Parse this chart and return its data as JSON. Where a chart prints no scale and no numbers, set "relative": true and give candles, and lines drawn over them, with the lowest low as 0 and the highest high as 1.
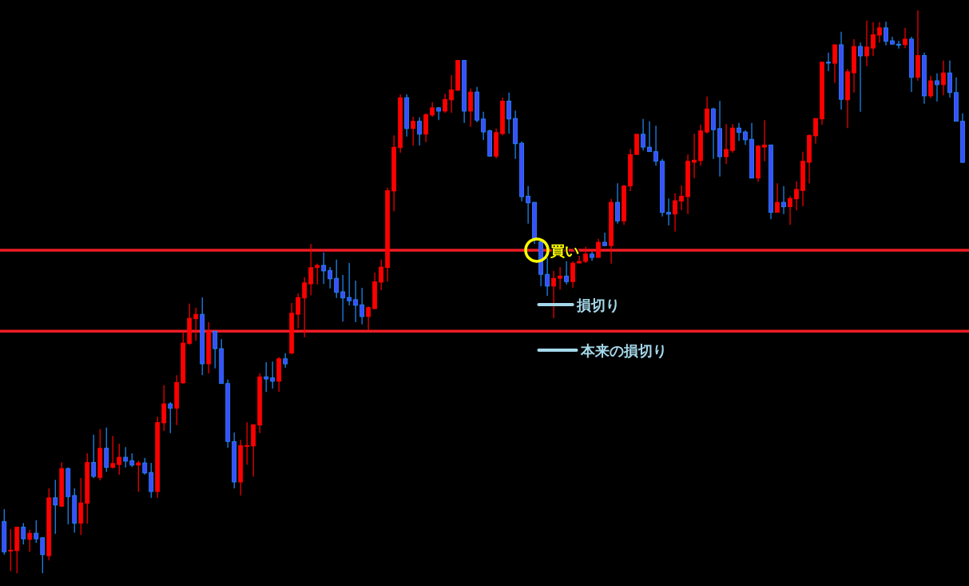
{
  "chart_data": {
    "type": "candlestick",
    "relative": true,
    "categories": [
      null,
      null,
      null,
      null,
      null,
      null,
      null,
      null,
      null,
      null,
      null,
      null,
      null,
      null,
      null,
      null,
      null,
      null,
      null,
      null,
      null,
      null,
      null,
      null,
      null,
      null,
      null,
      null,
      null,
      null,
      null,
      null,
      null,
      null,
      null,
      null,
      null,
      null,
      null,
      null,
      null,
      null,
      null,
      null,
      null,
      null,
      null,
      null,
      null,
      null,
      null,
      null,
      null,
      null,
      null,
      null,
      null,
      null,
      null,
      null,
      null,
      null,
      null,
      null,
      null,
      null,
      null,
      null,
      null,
      null,
      null,
      null,
      null,
      null,
      null,
      null,
      null,
      null,
      null,
      null,
      null,
      null,
      null,
      null,
      null,
      null,
      null,
      null,
      null,
      null,
      null,
      null,
      null,
      null,
      null,
      null,
      null,
      null,
      null,
      null,
      null,
      null,
      null,
      null,
      null,
      null,
      null,
      null,
      null,
      null,
      null,
      null,
      null,
      null,
      null,
      null,
      null,
      null,
      null,
      null,
      null,
      null,
      null,
      null,
      null,
      null,
      null,
      null,
      null,
      null,
      null,
      null,
      null,
      null,
      null,
      null,
      null,
      null,
      null,
      null,
      null,
      null,
      null,
      null,
      null,
      null,
      null,
      null,
      null,
      null,
      null
    ],
    "ohlc": [
      [
        0.092,
        0.114,
        0.033,
        0.038
      ],
      [
        0.04,
        0.078,
        0.004,
        0.041
      ],
      [
        0.04,
        0.082,
        0,
        0.082
      ],
      [
        0.082,
        0.089,
        0.051,
        0.061
      ],
      [
        0.06,
        0.077,
        0.038,
        0.071
      ],
      [
        0.071,
        0.094,
        0.054,
        0.061
      ],
      [
        0.063,
        0.063,
        0,
        0.033
      ],
      [
        0.031,
        0.151,
        0.023,
        0.134
      ],
      [
        0.134,
        0.166,
        0.07,
        0.121
      ],
      [
        0.119,
        0.197,
        0.118,
        0.186
      ],
      [
        0.186,
        0.188,
        0.087,
        0.136
      ],
      [
        0.138,
        0.151,
        0.072,
        0.089
      ],
      [
        0.089,
        0.169,
        0.068,
        0.125
      ],
      [
        0.124,
        0.213,
        0.088,
        0.197
      ],
      [
        0.197,
        0.246,
        0.169,
        0.172
      ],
      [
        0.17,
        0.256,
        0.165,
        0.222
      ],
      [
        0.222,
        0.259,
        0.18,
        0.188
      ],
      [
        0.188,
        0.244,
        0.186,
        0.195
      ],
      [
        0.193,
        0.23,
        0.175,
        0.206
      ],
      [
        0.206,
        0.224,
        0.188,
        0.199
      ],
      [
        0.2,
        0.213,
        0.189,
        0.192
      ],
      [
        0.192,
        0.2,
        0.145,
        0.196
      ],
      [
        0.196,
        0.205,
        0.175,
        0.178
      ],
      [
        0.179,
        0.196,
        0.134,
        0.145
      ],
      [
        0.145,
        0.278,
        0.134,
        0.268
      ],
      [
        0.267,
        0.334,
        0.253,
        0.301
      ],
      [
        0.301,
        0.304,
        0.249,
        0.293
      ],
      [
        0.293,
        0.352,
        0.263,
        0.339
      ],
      [
        0.338,
        0.429,
        0.337,
        0.409
      ],
      [
        0.408,
        0.479,
        0.406,
        0.453
      ],
      [
        0.452,
        0.472,
        0.413,
        0.46
      ],
      [
        0.46,
        0.49,
        0.352,
        0.372
      ],
      [
        0.372,
        0.446,
        0.355,
        0.43
      ],
      [
        0.43,
        0.43,
        0.364,
        0.399
      ],
      [
        0.399,
        0.416,
        0.337,
        0.337
      ],
      [
        0.337,
        0.344,
        0.223,
        0.234
      ],
      [
        0.234,
        0.25,
        0.151,
        0.162
      ],
      [
        0.162,
        0.237,
        0.138,
        0.227
      ],
      [
        0.226,
        0.268,
        0.193,
        0.227
      ],
      [
        0.226,
        0.264,
        0.172,
        0.264
      ],
      [
        0.263,
        0.355,
        0.249,
        0.349
      ],
      [
        0.349,
        0.375,
        0.322,
        0.345
      ],
      [
        0.347,
        0.376,
        0.328,
        0.341
      ],
      [
        0.341,
        0.384,
        0.322,
        0.381
      ],
      [
        0.381,
        0.391,
        0.365,
        0.372
      ],
      [
        0.391,
        0.48,
        0.389,
        0.462
      ],
      [
        0.46,
        0.497,
        0.435,
        0.49
      ],
      [
        0.489,
        0.526,
        0.419,
        0.516
      ],
      [
        0.514,
        0.585,
        0.494,
        0.543
      ],
      [
        0.543,
        0.55,
        0.513,
        0.547
      ],
      [
        0.547,
        0.57,
        0.514,
        0.537
      ],
      [
        0.538,
        0.544,
        0.506,
        0.523
      ],
      [
        0.524,
        0.557,
        0.489,
        0.499
      ],
      [
        0.5,
        0.53,
        0.447,
        0.489
      ],
      [
        0.49,
        0.551,
        0.476,
        0.484
      ],
      [
        0.486,
        0.52,
        0.446,
        0.476
      ],
      [
        0.477,
        0.507,
        0.442,
        0.456
      ],
      [
        0.456,
        0.474,
        0.432,
        0.472
      ],
      [
        0.47,
        0.534,
        0.47,
        0.518
      ],
      [
        0.517,
        0.557,
        0.503,
        0.544
      ],
      [
        0.543,
        0.685,
        0.518,
        0.68
      ],
      [
        0.679,
        0.778,
        0.643,
        0.757
      ],
      [
        0.756,
        0.851,
        0.747,
        0.845
      ],
      [
        0.845,
        0.851,
        0.776,
        0.79
      ],
      [
        0.79,
        0.811,
        0.76,
        0.803
      ],
      [
        0.803,
        0.81,
        0.76,
        0.78
      ],
      [
        0.78,
        0.817,
        0.766,
        0.815
      ],
      [
        0.814,
        0.837,
        0.811,
        0.827
      ],
      [
        0.827,
        0.828,
        0.805,
        0.821
      ],
      [
        0.821,
        0.852,
        0.818,
        0.842
      ],
      [
        0.841,
        0.885,
        0.818,
        0.859
      ],
      [
        0.858,
        0.912,
        0.857,
        0.911
      ],
      [
        0.911,
        0.912,
        0.8,
        0.821
      ],
      [
        0.821,
        0.861,
        0.793,
        0.855
      ],
      [
        0.855,
        0.864,
        0.801,
        0.805
      ],
      [
        0.807,
        0.82,
        0.77,
        0.784
      ],
      [
        0.786,
        0.788,
        0.741,
        0.741
      ],
      [
        0.741,
        0.79,
        0.737,
        0.783
      ],
      [
        0.781,
        0.845,
        0.778,
        0.839
      ],
      [
        0.839,
        0.854,
        0.781,
        0.807
      ],
      [
        0.808,
        0.822,
        0.736,
        0.763
      ],
      [
        0.764,
        0.767,
        0.661,
        0.669
      ],
      [
        0.67,
        0.688,
        0.621,
        0.658
      ],
      [
        0.659,
        0.659,
        0.585,
        0.592
      ],
      [
        0.589,
        0.592,
        0.51,
        0.531
      ],
      [
        0.531,
        0.56,
        0.493,
        0.51
      ],
      [
        0.51,
        0.537,
        0.453,
        0.524
      ],
      [
        0.524,
        0.544,
        0.504,
        0.528
      ],
      [
        0.528,
        0.554,
        0.513,
        0.518
      ],
      [
        0.518,
        0.554,
        0.507,
        0.551
      ],
      [
        0.551,
        0.564,
        0.551,
        0.554
      ],
      [
        0.554,
        0.58,
        0.551,
        0.567
      ],
      [
        0.567,
        0.571,
        0.555,
        0.561
      ],
      [
        0.561,
        0.594,
        0.561,
        0.588
      ],
      [
        0.588,
        0.605,
        0.582,
        0.582
      ],
      [
        0.582,
        0.665,
        0.55,
        0.659
      ],
      [
        0.659,
        0.693,
        0.621,
        0.626
      ],
      [
        0.626,
        0.69,
        0.619,
        0.688
      ],
      [
        0.688,
        0.754,
        0.679,
        0.744
      ],
      [
        0.744,
        0.78,
        0.744,
        0.78
      ],
      [
        0.78,
        0.807,
        0.751,
        0.757
      ],
      [
        0.757,
        0.803,
        0.749,
        0.749
      ],
      [
        0.749,
        0.795,
        0.724,
        0.732
      ],
      [
        0.732,
        0.736,
        0.634,
        0.641
      ],
      [
        0.641,
        0.666,
        0.618,
        0.638
      ],
      [
        0.638,
        0.675,
        0.607,
        0.662
      ],
      [
        0.661,
        0.689,
        0.645,
        0.67
      ],
      [
        0.669,
        0.744,
        0.638,
        0.732
      ],
      [
        0.73,
        0.781,
        0.702,
        0.734
      ],
      [
        0.733,
        0.797,
        0.724,
        0.786
      ],
      [
        0.784,
        0.847,
        0.781,
        0.825
      ],
      [
        0.825,
        0.827,
        0.736,
        0.788
      ],
      [
        0.79,
        0.839,
        0.705,
        0.74
      ],
      [
        0.74,
        0.798,
        0.727,
        0.753
      ],
      [
        0.751,
        0.798,
        0.747,
        0.791
      ],
      [
        0.791,
        0.8,
        0.768,
        0.783
      ],
      [
        0.784,
        0.787,
        0.761,
        0.77
      ],
      [
        0.771,
        0.8,
        0.702,
        0.702
      ],
      [
        0.702,
        0.761,
        0.695,
        0.759
      ],
      [
        0.757,
        0.805,
        0.732,
        0.761
      ],
      [
        0.761,
        0.761,
        0.629,
        0.641
      ],
      [
        0.641,
        0.693,
        0.641,
        0.659
      ],
      [
        0.659,
        0.688,
        0.638,
        0.651
      ],
      [
        0.651,
        0.67,
        0.619,
        0.666
      ],
      [
        0.665,
        0.696,
        0.645,
        0.682
      ],
      [
        0.68,
        0.749,
        0.652,
        0.732
      ],
      [
        0.73,
        0.78,
        0.693,
        0.778
      ],
      [
        0.777,
        0.808,
        0.763,
        0.808
      ],
      [
        0.807,
        0.908,
        0.797,
        0.908
      ],
      [
        0.908,
        0.925,
        0.892,
        0.907
      ],
      [
        0.906,
        0.939,
        0.871,
        0.939
      ],
      [
        0.939,
        0.962,
        0.824,
        0.842
      ],
      [
        0.841,
        0.896,
        0.791,
        0.891
      ],
      [
        0.889,
        0.949,
        0.854,
        0.936
      ],
      [
        0.936,
        0.943,
        0.82,
        0.919
      ],
      [
        0.919,
        0.982,
        0.901,
        0.935
      ],
      [
        0.933,
        0.979,
        0.919,
        0.957
      ],
      [
        0.956,
        0.979,
        0.943,
        0.969
      ],
      [
        0.969,
        0.98,
        0.938,
        0.945
      ],
      [
        0.946,
        0.953,
        0.94,
        0.94
      ],
      [
        0.94,
        0.946,
        0.932,
        0.939
      ],
      [
        0.939,
        0.969,
        0.933,
        0.949
      ],
      [
        0.949,
        0.953,
        0.855,
        0.881
      ],
      [
        0.881,
        1,
        0.875,
        0.92
      ],
      [
        0.92,
        0.925,
        0.834,
        0.848
      ],
      [
        0.848,
        0.884,
        0.844,
        0.875
      ],
      [
        0.875,
        0.888,
        0.838,
        0.868
      ],
      [
        0.868,
        0.911,
        0.849,
        0.889
      ],
      [
        0.889,
        0.911,
        0.845,
        0.854
      ],
      [
        0.854,
        0.881,
        0.803,
        0.803
      ],
      [
        0.803,
        0.817,
        0.729,
        0.73
      ]
    ],
    "ref_lines": [
      {
        "axis": "y",
        "value": 0.574,
        "color": "#ee1c25"
      },
      {
        "axis": "y",
        "value": 0.43,
        "color": "#ee1c25"
      }
    ],
    "annotations": [
      {
        "text": "買い",
        "y": 0.574
      },
      "損切り",
      "本来の損切り"
    ]
  }
}
